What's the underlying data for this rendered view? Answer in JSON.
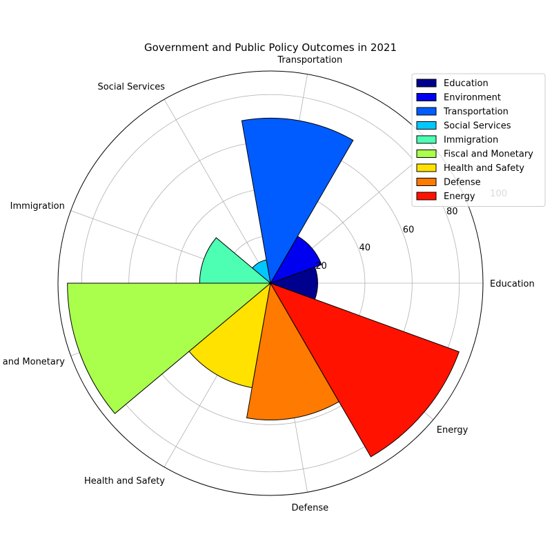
{
  "chart_data": {
    "type": "bar",
    "subtype": "polar",
    "title": "Government and Public Policy Outcomes in 2021",
    "categories": [
      "Education",
      "Environment",
      "Transportation",
      "Social Services",
      "Immigration",
      "Fiscal and Monetary",
      "Health and Safety",
      "Defense",
      "Energy"
    ],
    "values": [
      20,
      23,
      70,
      10,
      30,
      86,
      45,
      58,
      85
    ],
    "colors": [
      "#00008f",
      "#0000f0",
      "#005cff",
      "#00c8ff",
      "#4dffb3",
      "#aaff4d",
      "#ffe200",
      "#ff7a00",
      "#ff1300"
    ],
    "angle_labels": [
      "Education",
      "Transportation",
      "Social Services",
      "Immigration",
      "Fiscal and Monetary",
      "Health and Safety",
      "Defense",
      "Energy"
    ],
    "rticks": [
      20,
      40,
      60,
      80,
      100
    ],
    "rlim": [
      0,
      90
    ],
    "grid": true,
    "legend": {
      "placement": "top-right",
      "entries": [
        "Education",
        "Environment",
        "Transportation",
        "Social Services",
        "Immigration",
        "Fiscal and Monetary",
        "Health and Safety",
        "Defense",
        "Energy"
      ]
    }
  }
}
